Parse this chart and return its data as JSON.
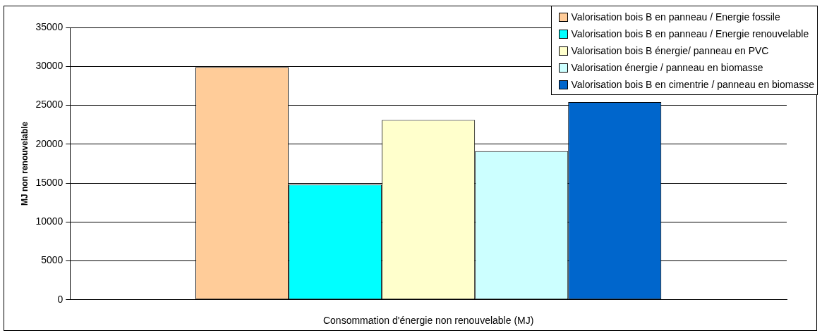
{
  "chart_data": {
    "type": "bar",
    "xlabel": "Consommation d'énergie non renouvelable (MJ)",
    "ylabel": "MJ non renouvelable",
    "categories": [
      null
    ],
    "series": [
      {
        "name": "Valorisation bois B en panneau / Energie fossile",
        "color": "#ffcc99",
        "values": [
          29900
        ]
      },
      {
        "name": "Valorisation bois B en panneau / Energie renouvelable",
        "color": "#00ffff",
        "values": [
          14800
        ]
      },
      {
        "name": "Valorisation bois B énergie/ panneau en PVC",
        "color": "#ffffcc",
        "values": [
          23100
        ]
      },
      {
        "name": "Valorisation énergie / panneau en biomasse",
        "color": "#ccffff",
        "values": [
          19100
        ]
      },
      {
        "name": "Valorisation bois B en cimentrie / panneau en biomasse",
        "color": "#0066cc",
        "values": [
          25400
        ]
      }
    ],
    "ylim": [
      0,
      35000
    ],
    "yticks": [
      0,
      5000,
      10000,
      15000,
      20000,
      25000,
      30000,
      35000
    ],
    "grid": "y",
    "legend": "top right"
  }
}
